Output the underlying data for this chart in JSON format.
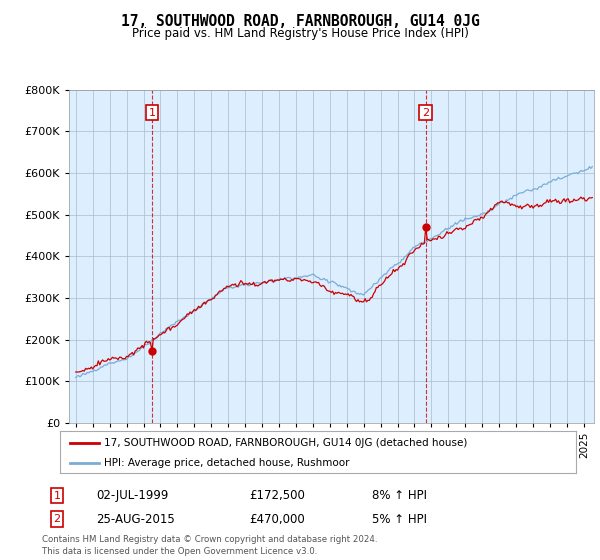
{
  "title": "17, SOUTHWOOD ROAD, FARNBOROUGH, GU14 0JG",
  "subtitle": "Price paid vs. HM Land Registry's House Price Index (HPI)",
  "legend_line1": "17, SOUTHWOOD ROAD, FARNBOROUGH, GU14 0JG (detached house)",
  "legend_line2": "HPI: Average price, detached house, Rushmoor",
  "annotation1_label": "1",
  "annotation1_date": "02-JUL-1999",
  "annotation1_price": "£172,500",
  "annotation1_hpi": "8% ↑ HPI",
  "annotation2_label": "2",
  "annotation2_date": "25-AUG-2015",
  "annotation2_price": "£470,000",
  "annotation2_hpi": "5% ↑ HPI",
  "footnote": "Contains HM Land Registry data © Crown copyright and database right 2024.\nThis data is licensed under the Open Government Licence v3.0.",
  "red_color": "#cc0000",
  "blue_color": "#7aadd4",
  "plot_bg_color": "#ddeeff",
  "background_color": "#ffffff",
  "grid_color": "#aabbcc",
  "ylim": [
    0,
    800000
  ],
  "yticks": [
    0,
    100000,
    200000,
    300000,
    400000,
    500000,
    600000,
    700000,
    800000
  ],
  "sale1_year": 1999.54,
  "sale1_price": 172500,
  "sale2_year": 2015.64,
  "sale2_price": 470000
}
